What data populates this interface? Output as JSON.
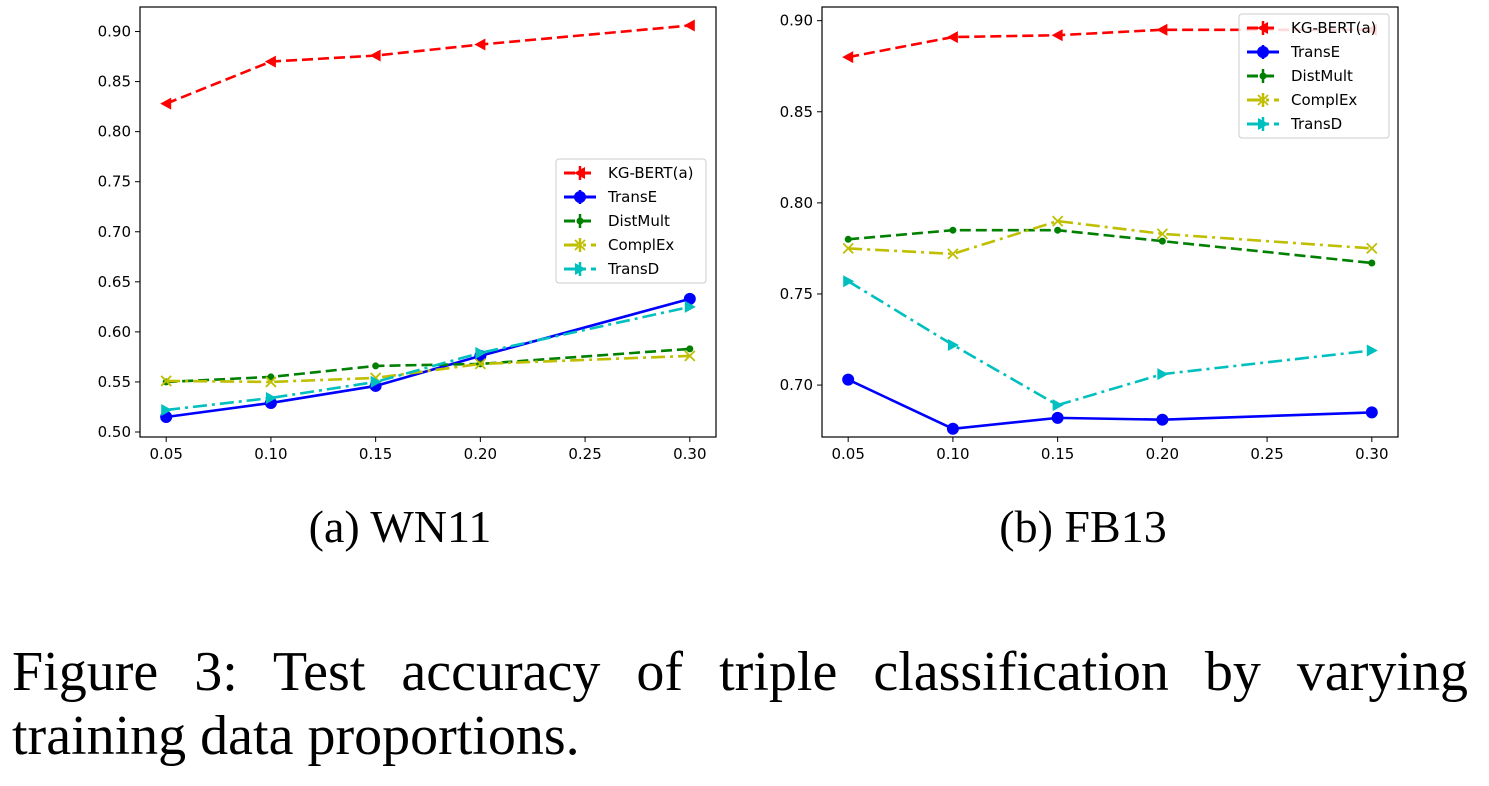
{
  "chart_data": [
    {
      "type": "line",
      "title": "",
      "subcaption": "(a) WN11",
      "xlabel": "",
      "ylabel": "",
      "xlim": [
        0.0375,
        0.3125
      ],
      "ylim": [
        0.495,
        0.9245
      ],
      "xticks": [
        "0.05",
        "0.10",
        "0.15",
        "0.20",
        "0.25",
        "0.30"
      ],
      "xtick_values": [
        0.05,
        0.1,
        0.15,
        0.2,
        0.25,
        0.3
      ],
      "yticks": [
        "0.50",
        "0.55",
        "0.60",
        "0.65",
        "0.70",
        "0.75",
        "0.80",
        "0.85",
        "0.90"
      ],
      "ytick_values": [
        0.5,
        0.55,
        0.6,
        0.65,
        0.7,
        0.75,
        0.8,
        0.85,
        0.9
      ],
      "legend_position": "center-right",
      "x": [
        0.05,
        0.1,
        0.15,
        0.2,
        0.3
      ],
      "series": [
        {
          "name": "KG-BERT(a)",
          "color": "#ff0000",
          "marker": "tri-left",
          "dash": "dashed",
          "values": [
            0.828,
            0.87,
            0.876,
            0.887,
            0.906
          ]
        },
        {
          "name": "TransE",
          "color": "#0000ff",
          "marker": "circle",
          "dash": "solid",
          "values": [
            0.515,
            0.529,
            0.546,
            0.576,
            0.633
          ]
        },
        {
          "name": "DistMult",
          "color": "#008000",
          "marker": "point",
          "dash": "dashed",
          "values": [
            0.55,
            0.555,
            0.566,
            0.568,
            0.583
          ]
        },
        {
          "name": "ComplEx",
          "color": "#bfbf00",
          "marker": "x",
          "dash": "dashdot",
          "values": [
            0.551,
            0.55,
            0.554,
            0.568,
            0.576
          ]
        },
        {
          "name": "TransD",
          "color": "#00bfbf",
          "marker": "tri-right",
          "dash": "dashdot",
          "values": [
            0.522,
            0.534,
            0.55,
            0.579,
            0.625
          ]
        }
      ]
    },
    {
      "type": "line",
      "title": "",
      "subcaption": "(b) FB13",
      "xlabel": "",
      "ylabel": "",
      "xlim": [
        0.0375,
        0.3125
      ],
      "ylim": [
        0.6715,
        0.9075
      ],
      "xticks": [
        "0.05",
        "0.10",
        "0.15",
        "0.20",
        "0.25",
        "0.30"
      ],
      "xtick_values": [
        0.05,
        0.1,
        0.15,
        0.2,
        0.25,
        0.3
      ],
      "yticks": [
        "0.70",
        "0.75",
        "0.80",
        "0.85",
        "0.90"
      ],
      "ytick_values": [
        0.7,
        0.75,
        0.8,
        0.85,
        0.9
      ],
      "legend_position": "top-right",
      "x": [
        0.05,
        0.1,
        0.15,
        0.2,
        0.3
      ],
      "series": [
        {
          "name": "KG-BERT(a)",
          "color": "#ff0000",
          "marker": "tri-left",
          "dash": "dashed",
          "values": [
            0.88,
            0.891,
            0.892,
            0.895,
            0.895
          ]
        },
        {
          "name": "TransE",
          "color": "#0000ff",
          "marker": "circle",
          "dash": "solid",
          "values": [
            0.703,
            0.676,
            0.682,
            0.681,
            0.685
          ]
        },
        {
          "name": "DistMult",
          "color": "#008000",
          "marker": "point",
          "dash": "dashed",
          "values": [
            0.78,
            0.785,
            0.785,
            0.779,
            0.767
          ]
        },
        {
          "name": "ComplEx",
          "color": "#bfbf00",
          "marker": "x",
          "dash": "dashdot",
          "values": [
            0.775,
            0.772,
            0.79,
            0.783,
            0.775
          ]
        },
        {
          "name": "TransD",
          "color": "#00bfbf",
          "marker": "tri-right",
          "dash": "dashdot",
          "values": [
            0.757,
            0.722,
            0.689,
            0.706,
            0.719
          ]
        }
      ]
    }
  ],
  "caption": "Figure 3: Test accuracy of triple classification by varying training data proportions."
}
